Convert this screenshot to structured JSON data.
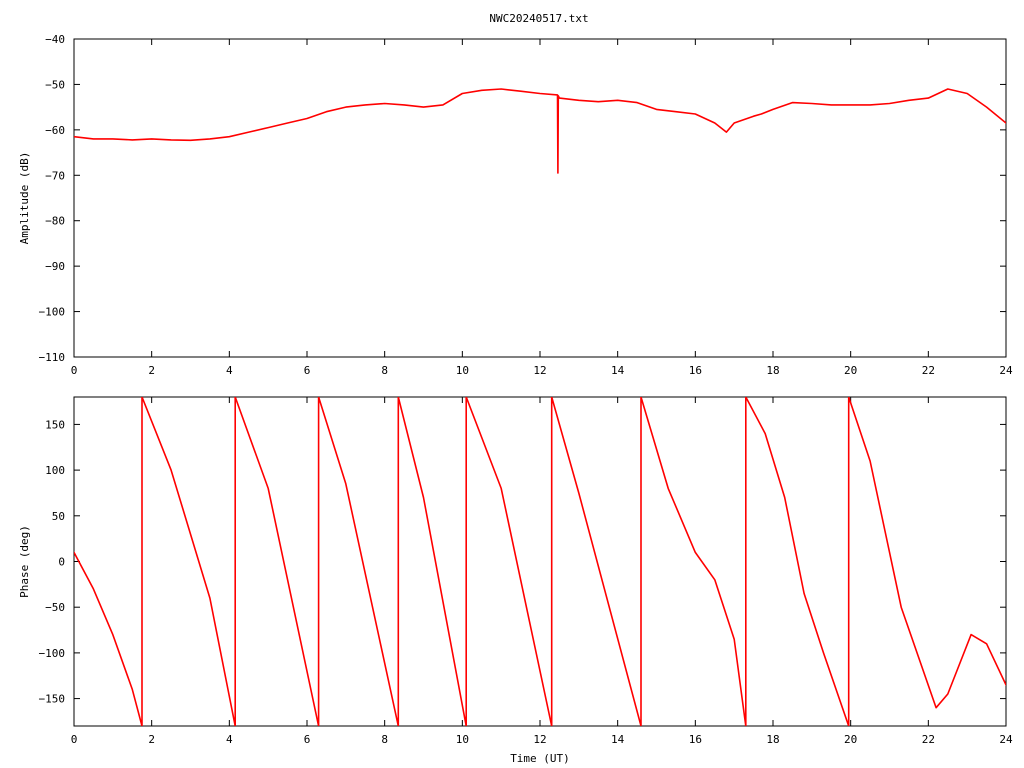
{
  "title": "NWC20240517.txt",
  "colors": {
    "trace": "#ff0000",
    "axes": "#000000",
    "background": "#ffffff"
  },
  "chart_data": [
    {
      "type": "line",
      "title": "NWC20240517.txt",
      "xlabel": "",
      "ylabel": "Amplitude (dB)",
      "xlim": [
        0,
        24
      ],
      "ylim": [
        -110,
        -40
      ],
      "xticks": [
        0,
        2,
        4,
        6,
        8,
        10,
        12,
        14,
        16,
        18,
        20,
        22,
        24
      ],
      "xtick_labels": [
        "0",
        "2",
        "4",
        "6",
        "8",
        "10",
        "12",
        "14",
        "16",
        "18",
        "20",
        "22",
        "24"
      ],
      "yticks": [
        -40,
        -50,
        -60,
        -70,
        -80,
        -90,
        -100,
        -110
      ],
      "ytick_labels": [
        "−40",
        "−50",
        "−60",
        "−70",
        "−80",
        "−90",
        "−100",
        "−110"
      ],
      "grid": false,
      "series": [
        {
          "x": [
            0,
            0.5,
            1,
            1.5,
            2,
            2.5,
            3,
            3.5,
            4,
            4.5,
            5,
            5.5,
            6,
            6.5,
            7,
            7.5,
            8,
            8.5,
            9,
            9.5,
            10,
            10.5,
            11,
            11.5,
            12,
            12.45,
            12.46,
            12.47,
            12.5,
            13,
            13.5,
            14,
            14.5,
            15,
            15.5,
            16,
            16.5,
            16.8,
            17,
            17.5,
            17.7,
            18,
            18.5,
            19,
            19.5,
            20,
            20.5,
            21,
            21.5,
            22,
            22.5,
            23,
            23.5,
            24
          ],
          "y": [
            -61.5,
            -62,
            -62,
            -62.2,
            -62,
            -62.2,
            -62.3,
            -62,
            -61.5,
            -60.5,
            -59.5,
            -58.5,
            -57.5,
            -56,
            -55,
            -54.5,
            -54.2,
            -54.5,
            -55,
            -54.5,
            -52,
            -51.3,
            -51,
            -51.5,
            -52,
            -52.3,
            -69.5,
            -52.5,
            -53,
            -53.5,
            -53.8,
            -53.5,
            -54,
            -55.5,
            -56,
            -56.5,
            -58.5,
            -60.5,
            -58.5,
            -57,
            -56.5,
            -55.5,
            -54,
            -54.2,
            -54.5,
            -54.5,
            -54.5,
            -54.2,
            -53.5,
            -53,
            -51,
            -52,
            -55,
            -58.5
          ]
        }
      ]
    },
    {
      "type": "line",
      "title": "",
      "xlabel": "Time (UT)",
      "ylabel": "Phase (deg)",
      "xlim": [
        0,
        24
      ],
      "ylim": [
        -180,
        180
      ],
      "xticks": [
        0,
        2,
        4,
        6,
        8,
        10,
        12,
        14,
        16,
        18,
        20,
        22,
        24
      ],
      "xtick_labels": [
        "0",
        "2",
        "4",
        "6",
        "8",
        "10",
        "12",
        "14",
        "16",
        "18",
        "20",
        "22",
        "24"
      ],
      "yticks": [
        150,
        100,
        50,
        0,
        -50,
        -100,
        -150
      ],
      "ytick_labels": [
        "150",
        "100",
        "50",
        "0",
        "−50",
        "−100",
        "−150"
      ],
      "grid": false,
      "series": [
        {
          "x": [
            0,
            0.5,
            1,
            1.5,
            1.75,
            1.75,
            2.5,
            3.5,
            4.15,
            4.15,
            5,
            6.3,
            6.3,
            7,
            8.35,
            8.35,
            9,
            10.1,
            10.1,
            11,
            12.3,
            12.3,
            13,
            14.6,
            14.6,
            15.3,
            16,
            16.5,
            17,
            17.3,
            17.3,
            17.8,
            18.3,
            18.8,
            19.3,
            19.95,
            19.95,
            20.5,
            21.3,
            22.2,
            22.5,
            23.1,
            23.5,
            24
          ],
          "y": [
            10,
            -30,
            -80,
            -140,
            -180,
            180,
            100,
            -40,
            -180,
            180,
            80,
            -180,
            180,
            85,
            -180,
            180,
            70,
            -180,
            180,
            80,
            -180,
            180,
            75,
            -180,
            180,
            80,
            10,
            -20,
            -85,
            -180,
            180,
            140,
            70,
            -35,
            -100,
            -180,
            180,
            110,
            -50,
            -160,
            -145,
            -80,
            -90,
            -135
          ]
        }
      ]
    }
  ]
}
